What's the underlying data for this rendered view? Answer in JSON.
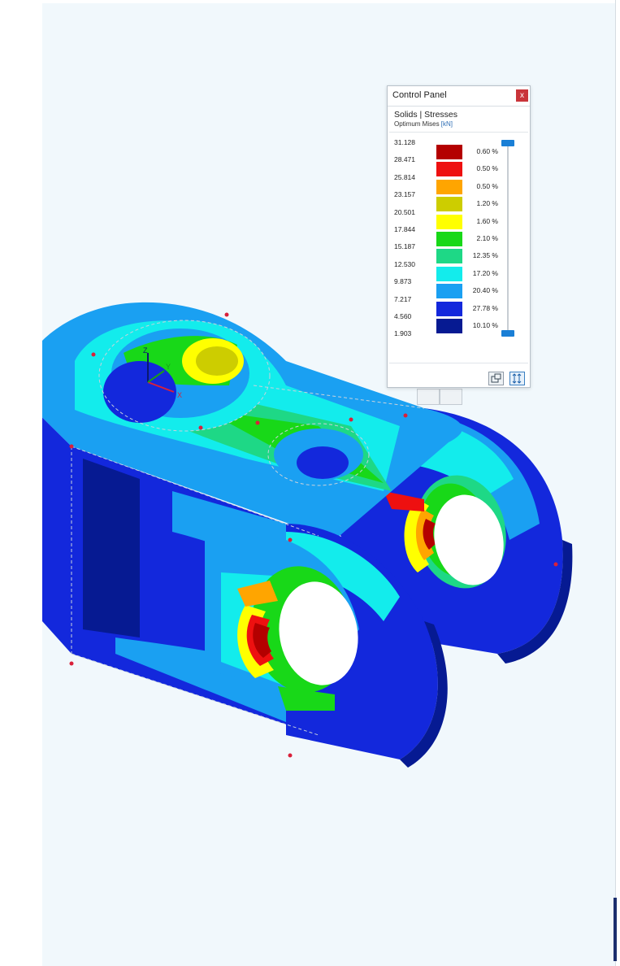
{
  "control_panel": {
    "title": "Control Panel",
    "close_label": "x",
    "result_type": "Solids | Stresses",
    "load_case_prefix": "Optimum Mises",
    "load_case_unit": "[kN]",
    "legend": [
      {
        "value": "31.128",
        "percent": "0.60 %",
        "color": "#b40000"
      },
      {
        "value": "28.471",
        "percent": "0.50 %",
        "color": "#ee1010"
      },
      {
        "value": "25.814",
        "percent": "0.50 %",
        "color": "#ffa500"
      },
      {
        "value": "23.157",
        "percent": "1.20 %",
        "color": "#cdcd00"
      },
      {
        "value": "20.501",
        "percent": "1.60 %",
        "color": "#ffff00"
      },
      {
        "value": "17.844",
        "percent": "2.10 %",
        "color": "#18d818"
      },
      {
        "value": "15.187",
        "percent": "12.35 %",
        "color": "#1ed886"
      },
      {
        "value": "12.530",
        "percent": "17.20 %",
        "color": "#13ecec"
      },
      {
        "value": "9.873",
        "percent": "20.40 %",
        "color": "#1aa0f2"
      },
      {
        "value": "7.217",
        "percent": "27.78 %",
        "color": "#1328dc"
      },
      {
        "value": "4.560",
        "percent": "10.10 %",
        "color": "#061a92"
      },
      {
        "value": "1.903",
        "percent": "",
        "color": ""
      }
    ]
  },
  "axes": {
    "x": "X",
    "y": "Y",
    "z": "Z"
  },
  "colors": {
    "background": "#f1f8fc",
    "mesh_line": "#c8d2dc",
    "node_point": "#d9203a"
  }
}
